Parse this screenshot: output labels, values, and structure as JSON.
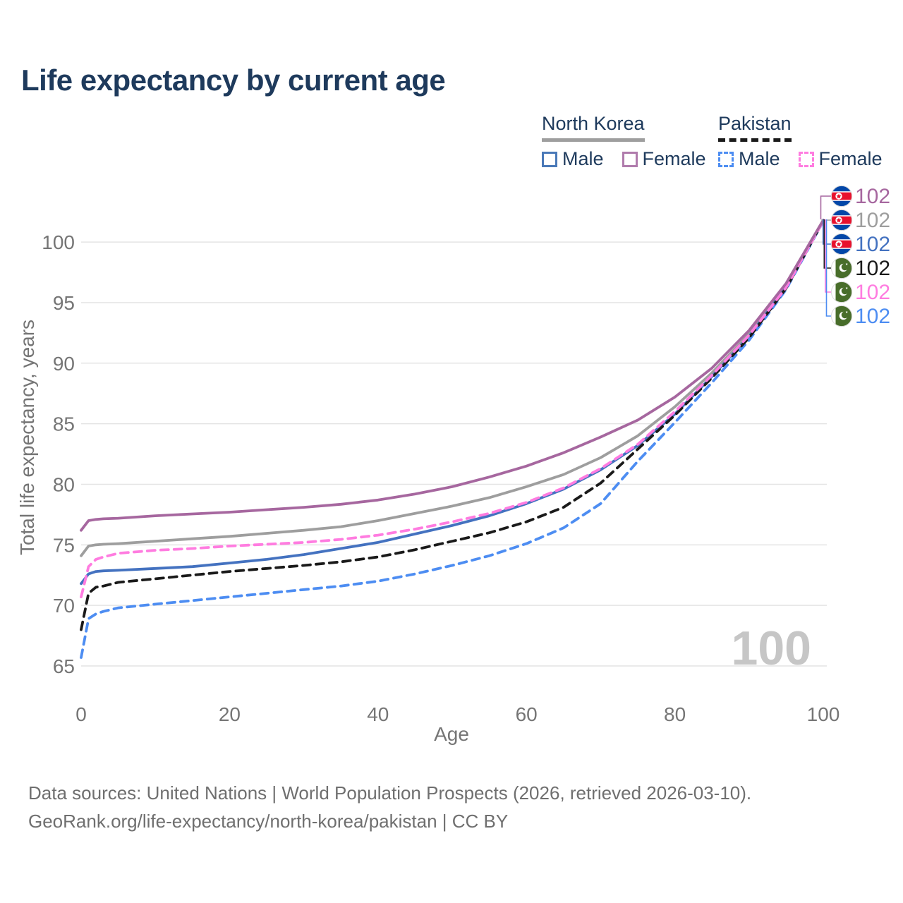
{
  "title": "Life expectancy by current age",
  "watermark_age": "100",
  "colors": {
    "heading_navy": "#1e3a5c",
    "tick_gray": "#757575",
    "grid_gray": "#e4e4e4",
    "watermark_gray": "#c6c6c6",
    "nk_female": "#a6679f",
    "nk_total": "#9e9e9e",
    "nk_male": "#4472c0",
    "pk_total": "#1a1a1a",
    "pk_female": "#ff7ce0",
    "pk_male": "#4d8df2"
  },
  "legend": {
    "groups": [
      {
        "label": "North Korea",
        "underline_style": "solid",
        "underline_color": "#9e9e9e",
        "items": [
          {
            "label": "Male",
            "color": "#4472c0",
            "dashed": false
          },
          {
            "label": "Female",
            "color": "#a6679f",
            "dashed": false
          }
        ]
      },
      {
        "label": "Pakistan",
        "underline_style": "dashed",
        "underline_color": "#1a1a1a",
        "items": [
          {
            "label": "Male",
            "color": "#4d8df2",
            "dashed": true
          },
          {
            "label": "Female",
            "color": "#ff7ce0",
            "dashed": true
          }
        ]
      }
    ]
  },
  "axes": {
    "x": {
      "label": "Age",
      "ticks": [
        0,
        20,
        40,
        60,
        80,
        100
      ],
      "range": [
        0,
        100
      ]
    },
    "y": {
      "label": "Total life expectancy, years",
      "ticks": [
        65,
        70,
        75,
        80,
        85,
        90,
        95,
        100
      ],
      "range": [
        63.5,
        103.5
      ]
    }
  },
  "footer": {
    "line1": "Data sources: United Nations | World Population Prospects (2026, retrieved 2026-03-10).",
    "line2": "GeoRank.org/life-expectancy/north-korea/pakistan | CC BY"
  },
  "chart_data": {
    "type": "line",
    "title": "Life expectancy by current age",
    "xlabel": "Age",
    "ylabel": "Total life expectancy, years",
    "xlim": [
      0,
      100
    ],
    "ylim": [
      63.5,
      103.5
    ],
    "grid": "horizontal",
    "legend_position": "top-right",
    "x": [
      0,
      1,
      2,
      3,
      5,
      10,
      15,
      20,
      25,
      30,
      35,
      40,
      45,
      50,
      55,
      60,
      65,
      70,
      75,
      80,
      85,
      90,
      95,
      100
    ],
    "series": [
      {
        "id": "nk-female",
        "name": "North Korea — Female",
        "color": "#a6679f",
        "dashed": false,
        "flag": "kp",
        "end_label": "102",
        "values": [
          76.2,
          77.0,
          77.1,
          77.15,
          77.2,
          77.4,
          77.55,
          77.7,
          77.9,
          78.1,
          78.35,
          78.7,
          79.2,
          79.8,
          80.6,
          81.5,
          82.6,
          83.9,
          85.3,
          87.2,
          89.6,
          92.7,
          96.6,
          101.82
        ]
      },
      {
        "id": "nk-total",
        "name": "North Korea — Both sexes",
        "color": "#9e9e9e",
        "dashed": false,
        "flag": "kp",
        "end_label": "102",
        "values": [
          74.1,
          74.9,
          75.0,
          75.05,
          75.1,
          75.3,
          75.5,
          75.7,
          75.95,
          76.2,
          76.5,
          77.0,
          77.6,
          78.2,
          78.9,
          79.8,
          80.8,
          82.2,
          84.0,
          86.4,
          89.2,
          92.4,
          96.4,
          101.8
        ]
      },
      {
        "id": "nk-male",
        "name": "North Korea — Male",
        "color": "#4472c0",
        "dashed": false,
        "flag": "kp",
        "end_label": "102",
        "values": [
          71.8,
          72.6,
          72.8,
          72.85,
          72.9,
          73.05,
          73.2,
          73.5,
          73.8,
          74.2,
          74.7,
          75.2,
          75.9,
          76.6,
          77.4,
          78.4,
          79.6,
          81.2,
          83.2,
          85.8,
          88.9,
          92.2,
          96.3,
          101.78
        ]
      },
      {
        "id": "pk-total",
        "name": "Pakistan — Both sexes",
        "color": "#1a1a1a",
        "dashed": true,
        "flag": "pk",
        "end_label": "102",
        "values": [
          68.0,
          71.0,
          71.5,
          71.6,
          71.9,
          72.2,
          72.5,
          72.8,
          73.05,
          73.3,
          73.6,
          74.0,
          74.6,
          75.3,
          76.0,
          76.9,
          78.1,
          80.1,
          82.9,
          85.7,
          88.8,
          92.1,
          96.2,
          101.76
        ]
      },
      {
        "id": "pk-female",
        "name": "Pakistan — Female",
        "color": "#ff7ce0",
        "dashed": true,
        "flag": "pk",
        "end_label": "102",
        "values": [
          70.7,
          73.2,
          73.8,
          74.0,
          74.3,
          74.55,
          74.7,
          74.9,
          75.05,
          75.2,
          75.45,
          75.8,
          76.3,
          76.9,
          77.6,
          78.5,
          79.7,
          81.3,
          83.3,
          86.0,
          89.0,
          92.3,
          96.25,
          101.74
        ]
      },
      {
        "id": "pk-male",
        "name": "Pakistan — Male",
        "color": "#4d8df2",
        "dashed": true,
        "flag": "pk",
        "end_label": "102",
        "values": [
          65.7,
          68.9,
          69.3,
          69.5,
          69.8,
          70.1,
          70.4,
          70.7,
          71.0,
          71.3,
          71.6,
          72.0,
          72.6,
          73.3,
          74.1,
          75.1,
          76.4,
          78.4,
          81.9,
          85.1,
          88.4,
          91.9,
          96.1,
          101.72
        ]
      }
    ]
  }
}
